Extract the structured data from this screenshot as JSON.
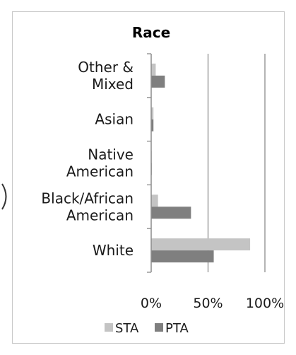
{
  "chart_data": {
    "type": "bar",
    "orientation": "horizontal",
    "title": "Race",
    "categories": [
      [
        "Other &",
        "Mixed"
      ],
      [
        "Asian"
      ],
      [
        "Native",
        "American"
      ],
      [
        "Black/African",
        "American"
      ],
      [
        "White"
      ]
    ],
    "series": [
      {
        "name": "STA",
        "color": "#c4c4c4",
        "values": [
          4,
          2,
          0.5,
          6,
          87
        ]
      },
      {
        "name": "PTA",
        "color": "#7f7f7f",
        "values": [
          12,
          2,
          0.5,
          35,
          55
        ]
      }
    ],
    "xlim": [
      0,
      100
    ],
    "ticks": [
      {
        "value": 0,
        "label": "0%"
      },
      {
        "value": 50,
        "label": "50%"
      },
      {
        "value": 100,
        "label": "100%"
      }
    ],
    "grid": true,
    "legend_position": "bottom"
  }
}
